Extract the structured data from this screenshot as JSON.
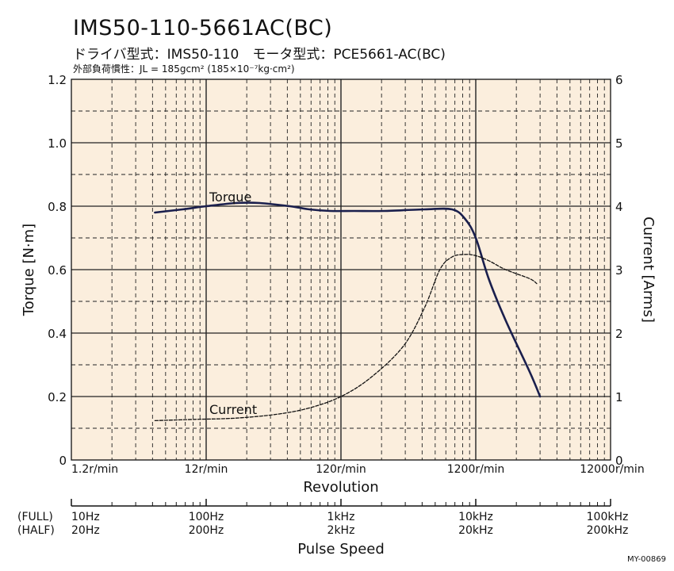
{
  "header": {
    "title": "IMS50-110-5661AC(BC)",
    "subtitle": "ドライバ型式：IMS50-110　モータ型式：PCE5661-AC(BC)",
    "inertia_label": "外部負荷慣性：",
    "inertia_value": "JL = 185gcm² (185×10⁻⁷kg·cm²)"
  },
  "figure_code": "MY-00869",
  "colors": {
    "plot_bg": "#fbeedd",
    "torque": "#1a1f4d",
    "current": "#111111",
    "grid": "#222222"
  },
  "chart_data": {
    "type": "line",
    "x_scale": "log",
    "xlabel": "Revolution",
    "x_unit_ticks": [
      1.2,
      12,
      120,
      1200,
      12000
    ],
    "x_tick_labels": [
      "1.2r/min",
      "12r/min",
      "120r/min",
      "1200r/min",
      "12000r/min"
    ],
    "xlim": [
      1.2,
      12000
    ],
    "ylabel": "Torque [N·m]",
    "ylim": [
      0,
      1.2
    ],
    "y_ticks": [
      0,
      0.2,
      0.4,
      0.6,
      0.8,
      1.0,
      1.2
    ],
    "y_tick_labels": [
      "0",
      "0.2",
      "0.4",
      "0.6",
      "0.8",
      "1.0",
      "1.2"
    ],
    "y2label": "Current [Arms]",
    "y2lim": [
      0,
      6
    ],
    "y2_ticks": [
      0,
      1,
      2,
      3,
      4,
      5,
      6
    ],
    "y2_tick_labels": [
      "0",
      "1",
      "2",
      "3",
      "4",
      "5",
      "6"
    ],
    "grid": true,
    "pulse_axis": {
      "title": "Pulse Speed",
      "rows": [
        "(FULL)",
        "(HALF)"
      ],
      "full_labels": [
        "10Hz",
        "100Hz",
        "1kHz",
        "10kHz",
        "100kHz"
      ],
      "half_labels": [
        "20Hz",
        "200Hz",
        "2kHz",
        "20kHz",
        "200kHz"
      ]
    },
    "series": [
      {
        "name": "Torque",
        "axis": "left",
        "style": "solid",
        "x": [
          5,
          8,
          12,
          20,
          30,
          50,
          70,
          100,
          150,
          250,
          500,
          800,
          1000,
          1200,
          1500,
          2000,
          3000,
          3600
        ],
        "y": [
          0.78,
          0.79,
          0.8,
          0.81,
          0.81,
          0.8,
          0.79,
          0.785,
          0.785,
          0.785,
          0.79,
          0.79,
          0.76,
          0.7,
          0.57,
          0.44,
          0.28,
          0.2
        ]
      },
      {
        "name": "Current",
        "axis": "right",
        "style": "dashed",
        "x": [
          5,
          10,
          20,
          40,
          70,
          120,
          200,
          350,
          500,
          650,
          800,
          1000,
          1200,
          1500,
          2000,
          3000,
          3400
        ],
        "y": [
          0.62,
          0.64,
          0.66,
          0.72,
          0.82,
          1.0,
          1.3,
          1.8,
          2.4,
          3.0,
          3.2,
          3.24,
          3.22,
          3.14,
          3.0,
          2.86,
          2.78
        ]
      }
    ]
  }
}
